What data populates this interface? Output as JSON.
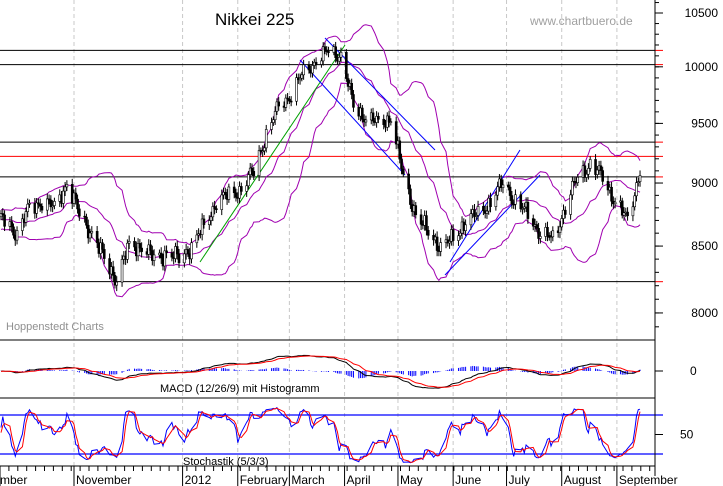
{
  "chart_data": {
    "type": "candlestick",
    "title": "Nikkei 225",
    "watermark": "www.chartbuero.de",
    "source_label": "Hoppenstedt Charts",
    "y_ticks": [
      10500,
      10000,
      9500,
      9000,
      8500,
      8000
    ],
    "ylim": [
      7850,
      10600
    ],
    "y_scale": "log",
    "x_tick_labels": [
      {
        "label": "mber",
        "date": "2011-09-01"
      },
      {
        "label": "November",
        "date": "2011-11-01"
      },
      {
        "label": "2012",
        "date": "2012-01-01"
      },
      {
        "label": "February",
        "date": "2012-02-01"
      },
      {
        "label": "March",
        "date": "2012-03-01"
      },
      {
        "label": "April",
        "date": "2012-04-01"
      },
      {
        "label": "May",
        "date": "2012-05-01"
      },
      {
        "label": "June",
        "date": "2012-06-01"
      },
      {
        "label": "July",
        "date": "2012-07-01"
      },
      {
        "label": "August",
        "date": "2012-08-01"
      },
      {
        "label": "September",
        "date": "2012-09-01"
      }
    ],
    "weekly_close": {
      "dates": [
        "2011-09-23",
        "2011-09-30",
        "2011-10-07",
        "2011-10-14",
        "2011-10-21",
        "2011-10-28",
        "2011-11-04",
        "2011-11-11",
        "2011-11-18",
        "2011-11-25",
        "2011-12-02",
        "2011-12-09",
        "2011-12-16",
        "2011-12-23",
        "2011-12-30",
        "2012-01-06",
        "2012-01-13",
        "2012-01-20",
        "2012-01-27",
        "2012-02-03",
        "2012-02-10",
        "2012-02-17",
        "2012-02-24",
        "2012-03-02",
        "2012-03-09",
        "2012-03-16",
        "2012-03-23",
        "2012-03-30",
        "2012-04-06",
        "2012-04-13",
        "2012-04-20",
        "2012-04-27",
        "2012-05-04",
        "2012-05-11",
        "2012-05-18",
        "2012-05-25",
        "2012-06-01",
        "2012-06-08",
        "2012-06-15",
        "2012-06-22",
        "2012-06-29",
        "2012-07-06",
        "2012-07-13",
        "2012-07-20",
        "2012-07-27",
        "2012-08-03",
        "2012-08-10",
        "2012-08-17",
        "2012-08-24",
        "2012-08-31",
        "2012-09-07",
        "2012-09-14"
      ],
      "values": [
        8700,
        8600,
        8800,
        8850,
        8800,
        9000,
        8750,
        8600,
        8400,
        8250,
        8500,
        8500,
        8400,
        8450,
        8400,
        8500,
        8650,
        8850,
        8900,
        8950,
        9100,
        9400,
        9650,
        9750,
        9950,
        10050,
        10150,
        10100,
        9650,
        9550,
        9500,
        9550,
        9050,
        8750,
        8600,
        8500,
        8550,
        8700,
        8750,
        8850,
        9000,
        8850,
        8750,
        8600,
        8550,
        8800,
        9050,
        9150,
        9050,
        8850,
        8700,
        9100
      ]
    },
    "horizontal_levels": [
      {
        "value": 10150,
        "color": "#000000"
      },
      {
        "value": 10020,
        "color": "#000000"
      },
      {
        "value": 9340,
        "color": "#000000"
      },
      {
        "value": 9220,
        "color": "#ff0000"
      },
      {
        "value": 9050,
        "color": "#000000"
      },
      {
        "value": 8230,
        "color": "#000000"
      }
    ],
    "overlays": {
      "bollinger_color": "#a000b0",
      "uptrend_color": "#00a000",
      "channel_color": "#0000ff"
    },
    "macd": {
      "label": "MACD (12/26/9) mit Histogramm",
      "y_ticks": [
        0
      ],
      "line_color": "#000000",
      "signal_color": "#ff0000",
      "histogram_color": "#0000ff"
    },
    "stochastic": {
      "label": "Stochastik (5/3/3)",
      "y_ticks": [
        50
      ],
      "levels": [
        80,
        20
      ],
      "k_color": "#0000ff",
      "d_color": "#ff0000"
    }
  }
}
